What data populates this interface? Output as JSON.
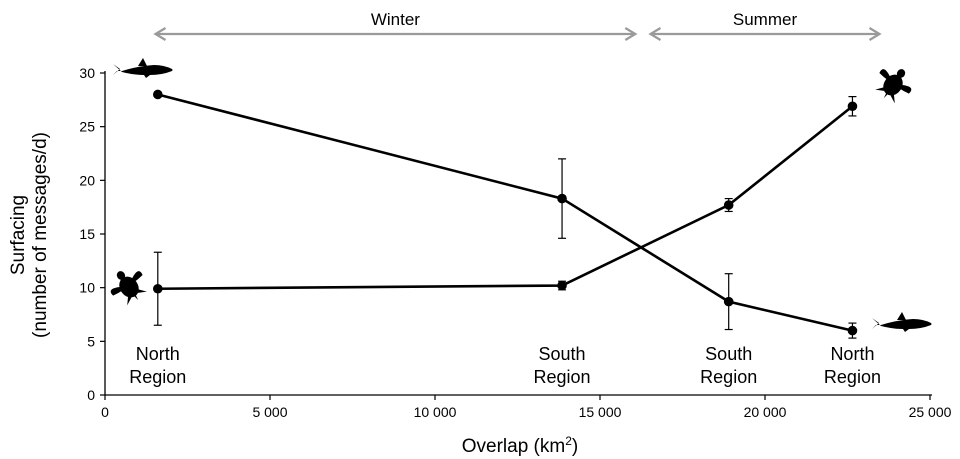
{
  "chart_data": {
    "type": "line",
    "xlabel": "Overlap (km",
    "xlabel_superscript": "2",
    "xlabel_suffix": ")",
    "ylabel": "Surfacing",
    "ylabel_line2": "(number of messages/d)",
    "xlim": [
      0,
      25000
    ],
    "ylim": [
      0,
      30
    ],
    "x_ticks": [
      0,
      5000,
      10000,
      15000,
      20000,
      25000
    ],
    "x_tick_labels": [
      "0",
      "5 000",
      "10 000",
      "15 000",
      "20 000",
      "25 000"
    ],
    "y_ticks": [
      0,
      5,
      10,
      15,
      20,
      25,
      30
    ],
    "y_tick_labels": [
      "0",
      "5",
      "10",
      "15",
      "20",
      "25",
      "30"
    ],
    "series": [
      {
        "icon": "shark-icon",
        "color": "#000000",
        "points": [
          {
            "x": 1600,
            "y": 28.0,
            "err": 0.0
          },
          {
            "x": 13850,
            "y": 18.3,
            "err": 3.7
          },
          {
            "x": 18900,
            "y": 8.7,
            "err": 2.6
          },
          {
            "x": 22650,
            "y": 6.0,
            "err": 0.7
          }
        ]
      },
      {
        "icon": "turtle-icon",
        "color": "#000000",
        "points": [
          {
            "x": 1600,
            "y": 9.9,
            "err": 3.4
          },
          {
            "x": 13850,
            "y": 10.2,
            "err": 0.4
          },
          {
            "x": 18900,
            "y": 17.7,
            "err": 0.6
          },
          {
            "x": 22650,
            "y": 26.9,
            "err": 0.9
          }
        ]
      }
    ],
    "region_labels": [
      {
        "x": 1600,
        "line1": "North",
        "line2": "Region"
      },
      {
        "x": 13850,
        "line1": "South",
        "line2": "Region"
      },
      {
        "x": 18900,
        "line1": "South",
        "line2": "Region"
      },
      {
        "x": 22650,
        "line1": "North",
        "line2": "Region"
      }
    ],
    "seasons": [
      {
        "label": "Winter",
        "x_start": 1500,
        "x_end": 16100
      },
      {
        "label": "Summer",
        "x_start": 16500,
        "x_end": 23500
      }
    ],
    "season_arrow_color": "#9a9a9a"
  }
}
